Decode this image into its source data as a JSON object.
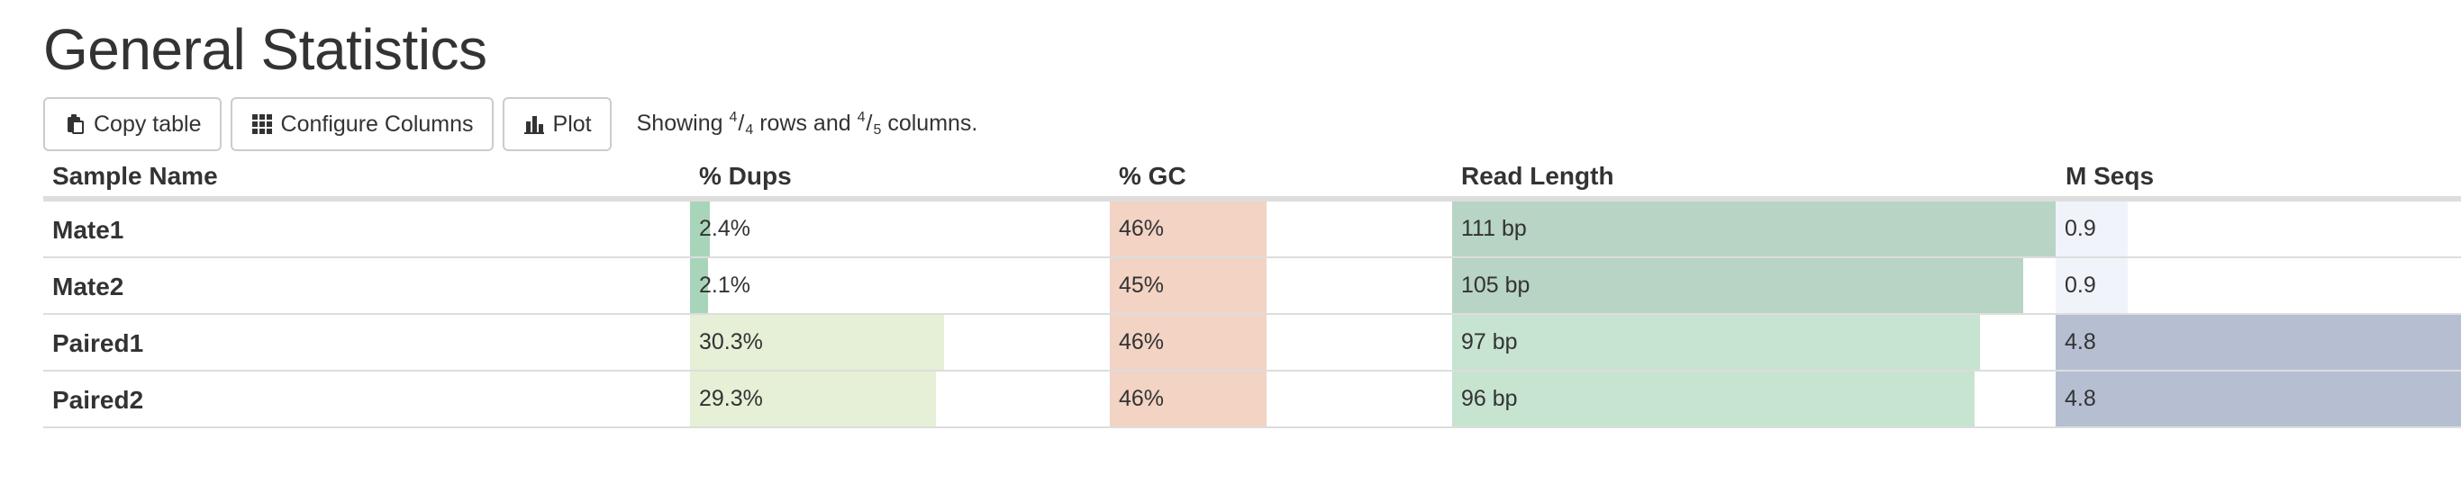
{
  "page": {
    "title": "General Statistics"
  },
  "toolbar": {
    "copy_label": "Copy table",
    "configure_label": "Configure Columns",
    "plot_label": "Plot",
    "showing": {
      "prefix": "Showing",
      "rows_shown": "4",
      "rows_total": "4",
      "rows_word": "rows and",
      "cols_shown": "4",
      "cols_total": "5",
      "cols_word": "columns."
    }
  },
  "table": {
    "headers": {
      "sample": "Sample Name",
      "dups": "% Dups",
      "gc": "% GC",
      "readlen": "Read Length",
      "mseqs": "M Seqs"
    },
    "colors": {
      "dups": "#a8d5ba",
      "dups_high": "#e5f0d6",
      "gc": "#f2d3c4",
      "readlen_mate": "#b8d4c4",
      "readlen_paired": "#c6e4d0",
      "mseqs_low": "#f0f3fa",
      "mseqs_high": "#b6bfd1"
    },
    "rows": [
      {
        "name": "Mate1",
        "dups": "2.4%",
        "dups_frac": 0.024,
        "gc": "46%",
        "gc_frac": 0.46,
        "readlen": "111 bp",
        "readlen_frac": 1.0,
        "mseqs": "0.9",
        "mseqs_frac": 0.19
      },
      {
        "name": "Mate2",
        "dups": "2.1%",
        "dups_frac": 0.021,
        "gc": "45%",
        "gc_frac": 0.45,
        "readlen": "105 bp",
        "readlen_frac": 0.946,
        "mseqs": "0.9",
        "mseqs_frac": 0.19
      },
      {
        "name": "Paired1",
        "dups": "30.3%",
        "dups_frac": 0.303,
        "gc": "46%",
        "gc_frac": 0.46,
        "readlen": "97 bp",
        "readlen_frac": 0.874,
        "mseqs": "4.8",
        "mseqs_frac": 1.0
      },
      {
        "name": "Paired2",
        "dups": "29.3%",
        "dups_frac": 0.293,
        "gc": "46%",
        "gc_frac": 0.46,
        "readlen": "96 bp",
        "readlen_frac": 0.865,
        "mseqs": "4.8",
        "mseqs_frac": 1.0
      }
    ]
  }
}
